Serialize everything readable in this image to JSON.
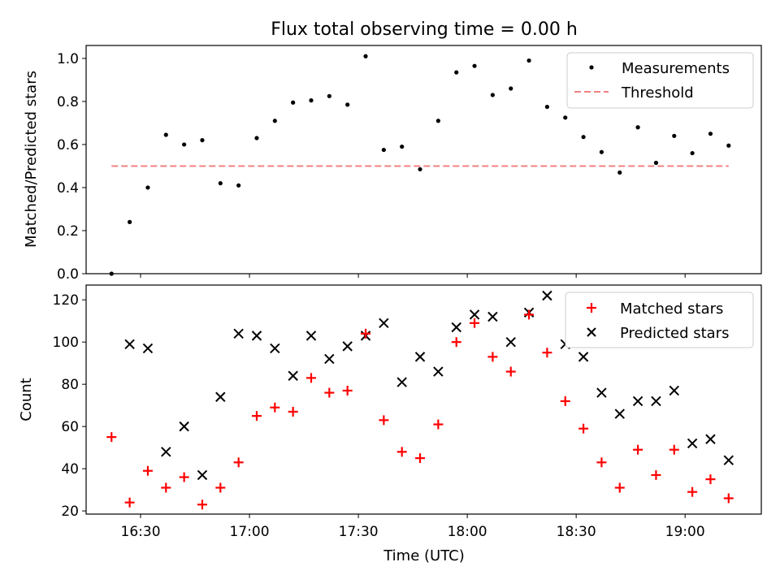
{
  "chart_data": [
    {
      "type": "scatter",
      "title": "Flux total observing time = 0.00 h",
      "ylabel": "Matched/Predicted stars",
      "xlabel": "",
      "ylim": [
        0,
        1.06
      ],
      "yticks": [
        0.0,
        0.2,
        0.4,
        0.6,
        0.8,
        1.0
      ],
      "ytick_labels": [
        "0.0",
        "0.2",
        "0.4",
        "0.6",
        "0.8",
        "1.0"
      ],
      "legend_position": "top-right",
      "series": [
        {
          "name": "Measurements",
          "marker": "dot",
          "color": "#000000",
          "x": [
            "16:22",
            "16:27",
            "16:32",
            "16:37",
            "16:42",
            "16:47",
            "16:52",
            "16:57",
            "17:02",
            "17:07",
            "17:12",
            "17:17",
            "17:22",
            "17:27",
            "17:32",
            "17:37",
            "17:42",
            "17:47",
            "17:52",
            "17:57",
            "18:02",
            "18:07",
            "18:12",
            "18:17",
            "18:22",
            "18:27",
            "18:32",
            "18:37",
            "18:42",
            "18:47",
            "18:52",
            "18:57",
            "19:02",
            "19:07",
            "19:12"
          ],
          "y": [
            0.0,
            0.24,
            0.4,
            0.645,
            0.6,
            0.62,
            0.42,
            0.41,
            0.63,
            0.71,
            0.795,
            0.805,
            0.825,
            0.785,
            1.01,
            0.575,
            0.59,
            0.485,
            0.71,
            0.935,
            0.965,
            0.83,
            0.86,
            0.99,
            0.775,
            0.725,
            0.635,
            0.565,
            0.47,
            0.68,
            0.515,
            0.64,
            0.56,
            0.65,
            0.595
          ]
        },
        {
          "name": "Threshold",
          "marker": "dashed-line",
          "color": "#f08080",
          "x": [
            "16:22",
            "19:12"
          ],
          "y": [
            0.5,
            0.5
          ]
        }
      ]
    },
    {
      "type": "scatter",
      "xlabel": "Time (UTC)",
      "ylabel": "Count",
      "ylim": [
        18.5,
        127
      ],
      "yticks": [
        20,
        40,
        60,
        80,
        100,
        120
      ],
      "ytick_labels": [
        "20",
        "40",
        "60",
        "80",
        "100",
        "120"
      ],
      "xticks": [
        "16:30",
        "17:00",
        "17:30",
        "18:00",
        "18:30",
        "19:00"
      ],
      "xlim": [
        "16:15",
        "19:21"
      ],
      "legend_position": "top-right",
      "series": [
        {
          "name": "Matched stars",
          "marker": "plus",
          "color": "#ff0000",
          "x": [
            "16:22",
            "16:27",
            "16:32",
            "16:37",
            "16:42",
            "16:47",
            "16:52",
            "16:57",
            "17:02",
            "17:07",
            "17:12",
            "17:17",
            "17:22",
            "17:27",
            "17:32",
            "17:37",
            "17:42",
            "17:47",
            "17:52",
            "17:57",
            "18:02",
            "18:07",
            "18:12",
            "18:17",
            "18:22",
            "18:27",
            "18:32",
            "18:37",
            "18:42",
            "18:47",
            "18:52",
            "18:57",
            "19:02",
            "19:07",
            "19:12"
          ],
          "y": [
            55,
            24,
            39,
            31,
            36,
            23,
            31,
            43,
            65,
            69,
            67,
            83,
            76,
            77,
            104,
            63,
            48,
            45,
            61,
            100,
            109,
            93,
            86,
            113,
            95,
            72,
            59,
            43,
            31,
            49,
            37,
            49,
            29,
            35,
            26
          ]
        },
        {
          "name": "Predicted stars",
          "marker": "x",
          "color": "#000000",
          "x": [
            "16:27",
            "16:32",
            "16:37",
            "16:42",
            "16:52",
            "16:47",
            "16:57",
            "17:02",
            "17:07",
            "17:12",
            "17:17",
            "17:22",
            "17:27",
            "17:32",
            "17:37",
            "17:42",
            "17:47",
            "17:52",
            "17:57",
            "18:02",
            "18:07",
            "18:12",
            "18:17",
            "18:22",
            "18:27",
            "18:32",
            "18:37",
            "18:42",
            "18:47",
            "18:52",
            "18:57",
            "19:02",
            "19:07",
            "19:12"
          ],
          "y": [
            99,
            97,
            48,
            60,
            74,
            37,
            104,
            103,
            97,
            84,
            103,
            92,
            98,
            103,
            109,
            81,
            93,
            86,
            107,
            113,
            112,
            100,
            114,
            122,
            99,
            93,
            76,
            66,
            72,
            72,
            77,
            52,
            54,
            44
          ]
        }
      ]
    }
  ]
}
